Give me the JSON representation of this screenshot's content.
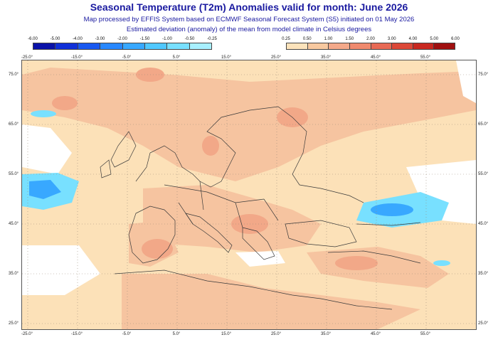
{
  "title": "Seasonal Temperature (T2m) Anomalies valid for month: June 2026",
  "subtitle1": "Map processed by EFFIS System based on ECMWF Seasonal Forecast System (S5) initiated on 01 May 2026",
  "subtitle2": "Estimated deviation (anomaly) of the mean from model climate in Celsius degrees",
  "legend_negative": {
    "ticks": [
      "-6.00",
      "-5.00",
      "-4.00",
      "-3.00",
      "-2.00",
      "-1.50",
      "-1.00",
      "-0.50",
      "-0.25"
    ],
    "colors": [
      "#0a12a8",
      "#1030d8",
      "#1858f0",
      "#2888ff",
      "#38a8ff",
      "#50c8ff",
      "#78e0ff",
      "#a8f0ff"
    ]
  },
  "legend_positive": {
    "ticks": [
      "0.25",
      "0.50",
      "1.00",
      "1.50",
      "2.00",
      "3.00",
      "4.00",
      "5.00",
      "6.00"
    ],
    "colors": [
      "#fce3bb",
      "#f8c9a0",
      "#f4a98a",
      "#f08a6e",
      "#e86a55",
      "#dc4838",
      "#c82820",
      "#a01010"
    ]
  },
  "map": {
    "lon_labels_top": [
      "-25.0°",
      "-15.0°",
      "-5.0°",
      "5.0°",
      "15.0°",
      "25.0°",
      "35.0°",
      "45.0°",
      "55.0°"
    ],
    "lon_labels_bottom": [
      "-25.0°",
      "-15.0°",
      "-5.0°",
      "5.0°",
      "15.0°",
      "25.0°",
      "35.0°",
      "45.0°",
      "55.0°"
    ],
    "lat_labels": [
      "75.0°",
      "65.0°",
      "55.0°",
      "45.0°",
      "35.0°",
      "25.0°"
    ]
  }
}
